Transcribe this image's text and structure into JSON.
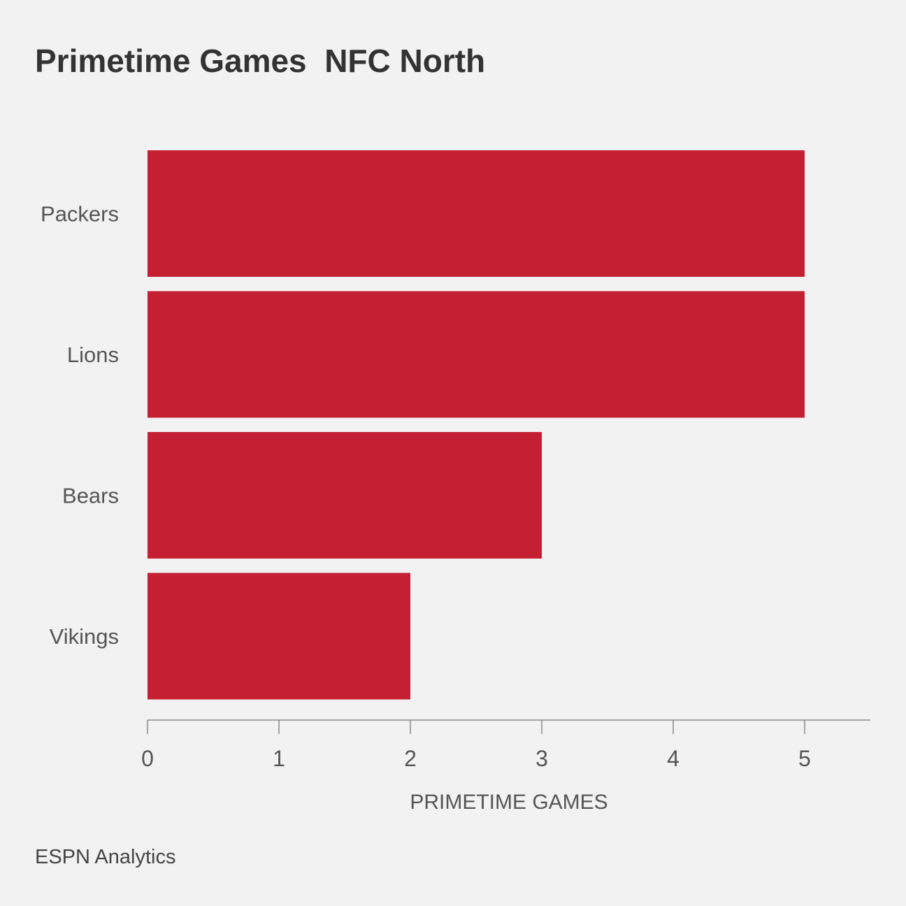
{
  "chart_data": {
    "type": "bar",
    "orientation": "horizontal",
    "title": "Primetime Games  NFC North",
    "categories": [
      "Packers",
      "Lions",
      "Bears",
      "Vikings"
    ],
    "values": [
      5,
      5,
      3,
      2
    ],
    "xlabel": "PRIMETIME GAMES",
    "ylabel": "",
    "xlim": [
      0,
      5.5
    ],
    "xticks": [
      "0",
      "1",
      "2",
      "3",
      "4",
      "5"
    ],
    "grid": false,
    "legend": "none",
    "bar_color": "#c41f32"
  },
  "source": "ESPN Analytics"
}
